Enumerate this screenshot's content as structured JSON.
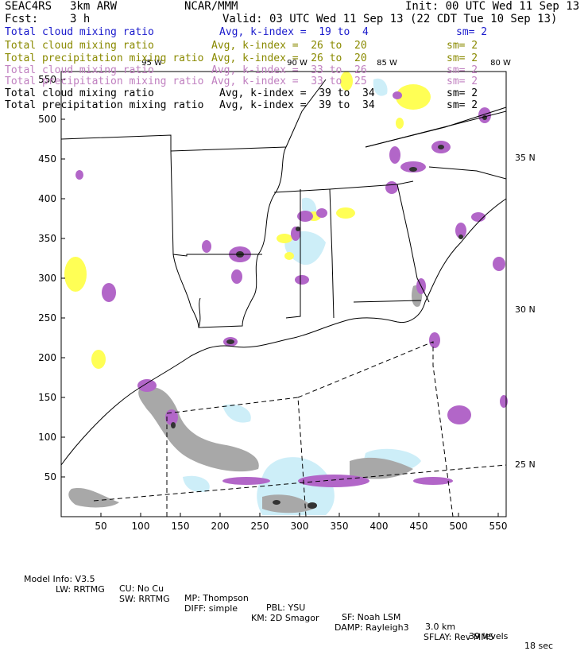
{
  "header": {
    "project": "SEAC4RS",
    "model": "3km ARW",
    "org": "NCAR/MMM",
    "init": "Init: 00 UTC Wed 11 Sep 13",
    "fcst_label": "Fcst:",
    "fcst_value": "3 h",
    "valid": "Valid: 03 UTC Wed 11 Sep 13 (22 CDT Tue 10 Sep 13)"
  },
  "legend_rows": [
    {
      "field": "Total cloud mixing ratio",
      "stat": "Avg, k-index =  19 to  4",
      "sm": "sm= 2",
      "color": "#1a1acc"
    },
    {
      "field": "Total cloud mixing ratio",
      "stat": "Avg, k-index =  26 to  20",
      "sm": "sm= 2",
      "color": "#8a8a00"
    },
    {
      "field": "Total precipitation mixing ratio",
      "stat": "Avg, k-index =  26 to  20",
      "sm": "sm= 2",
      "color": "#8a8a00"
    },
    {
      "field": "Total cloud mixing ratio",
      "stat": "Avg, k-index =  33 to  26",
      "sm": "sm= 2",
      "color": "#c080c0"
    },
    {
      "field": "Total precipitation mixing ratio",
      "stat": "Avg, k-index =  33 to  25",
      "sm": "sm= 2",
      "color": "#c080c0"
    },
    {
      "field": "Total cloud mixing ratio",
      "stat": "Avg, k-index =  39 to  34",
      "sm": "sm= 2",
      "color": "#000000"
    },
    {
      "field": "Total precipitation mixing ratio",
      "stat": "Avg, k-index =  39 to  34",
      "sm": "sm= 2",
      "color": "#000000"
    }
  ],
  "map": {
    "x_ticks": [
      50,
      100,
      150,
      200,
      250,
      300,
      350,
      400,
      450,
      500,
      550
    ],
    "y_ticks": [
      50,
      100,
      150,
      200,
      250,
      300,
      350,
      400,
      450,
      500,
      550
    ],
    "x_range": [
      0,
      560
    ],
    "y_range": [
      0,
      560
    ],
    "lon_labels": [
      {
        "text": "95 W",
        "lon": 95
      },
      {
        "text": "90 W",
        "lon": 90
      },
      {
        "text": "85 W",
        "lon": 85
      },
      {
        "text": "80 W",
        "lon": 80
      }
    ],
    "lat_labels": [
      {
        "text": "35 N",
        "lat": 35
      },
      {
        "text": "30 N",
        "lat": 30
      },
      {
        "text": "25 N",
        "lat": 25
      }
    ],
    "colors": {
      "frame": "#000000",
      "boundary": "#000000",
      "gridline": "#000000",
      "light_blue": "#cdeef8",
      "yellow": "#ffff55",
      "purple": "#b266c8",
      "gray": "#a8a8a8",
      "dark": "#333333"
    }
  },
  "footer": {
    "line1": [
      "Model Info: V3.5",
      "CU: No Cu",
      "MP: Thompson",
      "PBL: YSU",
      "SF: Noah LSM",
      "3.0 km",
      "39 levels",
      "18 sec"
    ],
    "line2": [
      "LW: RRTMG",
      "SW: RRTMG",
      "DIFF: simple",
      "KM: 2D Smagor",
      "DAMP: Rayleigh3",
      "SFLAY: Rev MM5"
    ]
  }
}
